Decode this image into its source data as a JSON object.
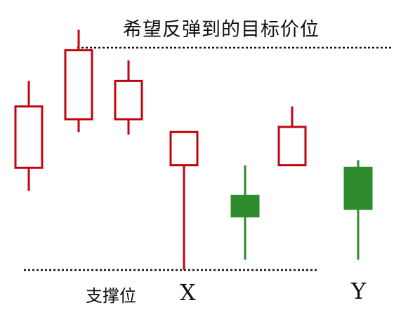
{
  "chart_data": {
    "type": "candlestick",
    "annotations": {
      "target_label": "希望反弹到的目标价位",
      "support_label": "支撑位",
      "x_marker": "X",
      "y_marker": "Y"
    },
    "colors": {
      "up": "#c0050f",
      "down": "#2e8b2e",
      "guide": "#111111"
    },
    "levels": {
      "target": 106,
      "support": 19
    },
    "candles": [
      {
        "open": 59,
        "close": 83,
        "high": 93,
        "low": 50,
        "direction": "up"
      },
      {
        "open": 78,
        "close": 105,
        "high": 113,
        "low": 73,
        "direction": "up"
      },
      {
        "open": 78,
        "close": 93,
        "high": 101,
        "low": 72,
        "direction": "up"
      },
      {
        "open": 60,
        "close": 73,
        "high": 73,
        "low": 19,
        "direction": "up",
        "marker": "X"
      },
      {
        "open": 48,
        "close": 40,
        "high": 60,
        "low": 23,
        "direction": "down"
      },
      {
        "open": 60,
        "close": 75,
        "high": 83,
        "low": 60,
        "direction": "up"
      },
      {
        "open": 59,
        "close": 43,
        "high": 62,
        "low": 23,
        "direction": "down",
        "marker": "Y"
      }
    ]
  }
}
